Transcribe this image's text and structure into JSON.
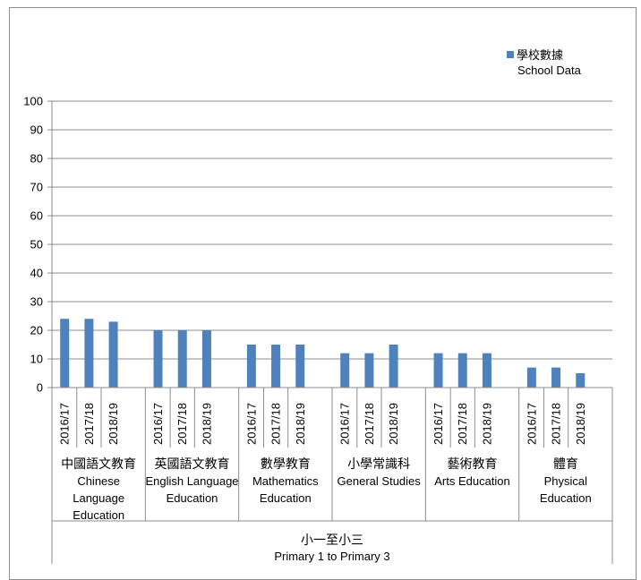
{
  "chart_data": {
    "type": "bar",
    "ylim": [
      0,
      100
    ],
    "yticks": [
      0,
      10,
      20,
      30,
      40,
      50,
      60,
      70,
      80,
      90,
      100
    ],
    "grid": true,
    "legend_position": "top-right",
    "legend": {
      "series_name_zh": "學校數據",
      "series_name_en": "School Data",
      "color": "#4f81bd"
    },
    "years": [
      "2016/17",
      "2017/18",
      "2018/19"
    ],
    "groups": [
      {
        "label_zh": "中國語文教育",
        "label_en": [
          "Chinese",
          "Language",
          "Education"
        ],
        "values": [
          24,
          24,
          23
        ]
      },
      {
        "label_zh": "英國語文教育",
        "label_en": [
          "English Language",
          "Education"
        ],
        "values": [
          20,
          20,
          20
        ]
      },
      {
        "label_zh": "數學教育",
        "label_en": [
          "Mathematics",
          "Education"
        ],
        "values": [
          15,
          15,
          15
        ]
      },
      {
        "label_zh": "小學常識科",
        "label_en": [
          "General Studies"
        ],
        "values": [
          12,
          12,
          15
        ]
      },
      {
        "label_zh": "藝術教育",
        "label_en": [
          "Arts Education"
        ],
        "values": [
          12,
          12,
          12
        ]
      },
      {
        "label_zh": "體育",
        "label_en": [
          "Physical",
          "Education"
        ],
        "values": [
          7,
          7,
          5
        ]
      }
    ],
    "outer_category": {
      "label_zh": "小一至小三",
      "label_en": "Primary 1 to Primary 3"
    }
  }
}
